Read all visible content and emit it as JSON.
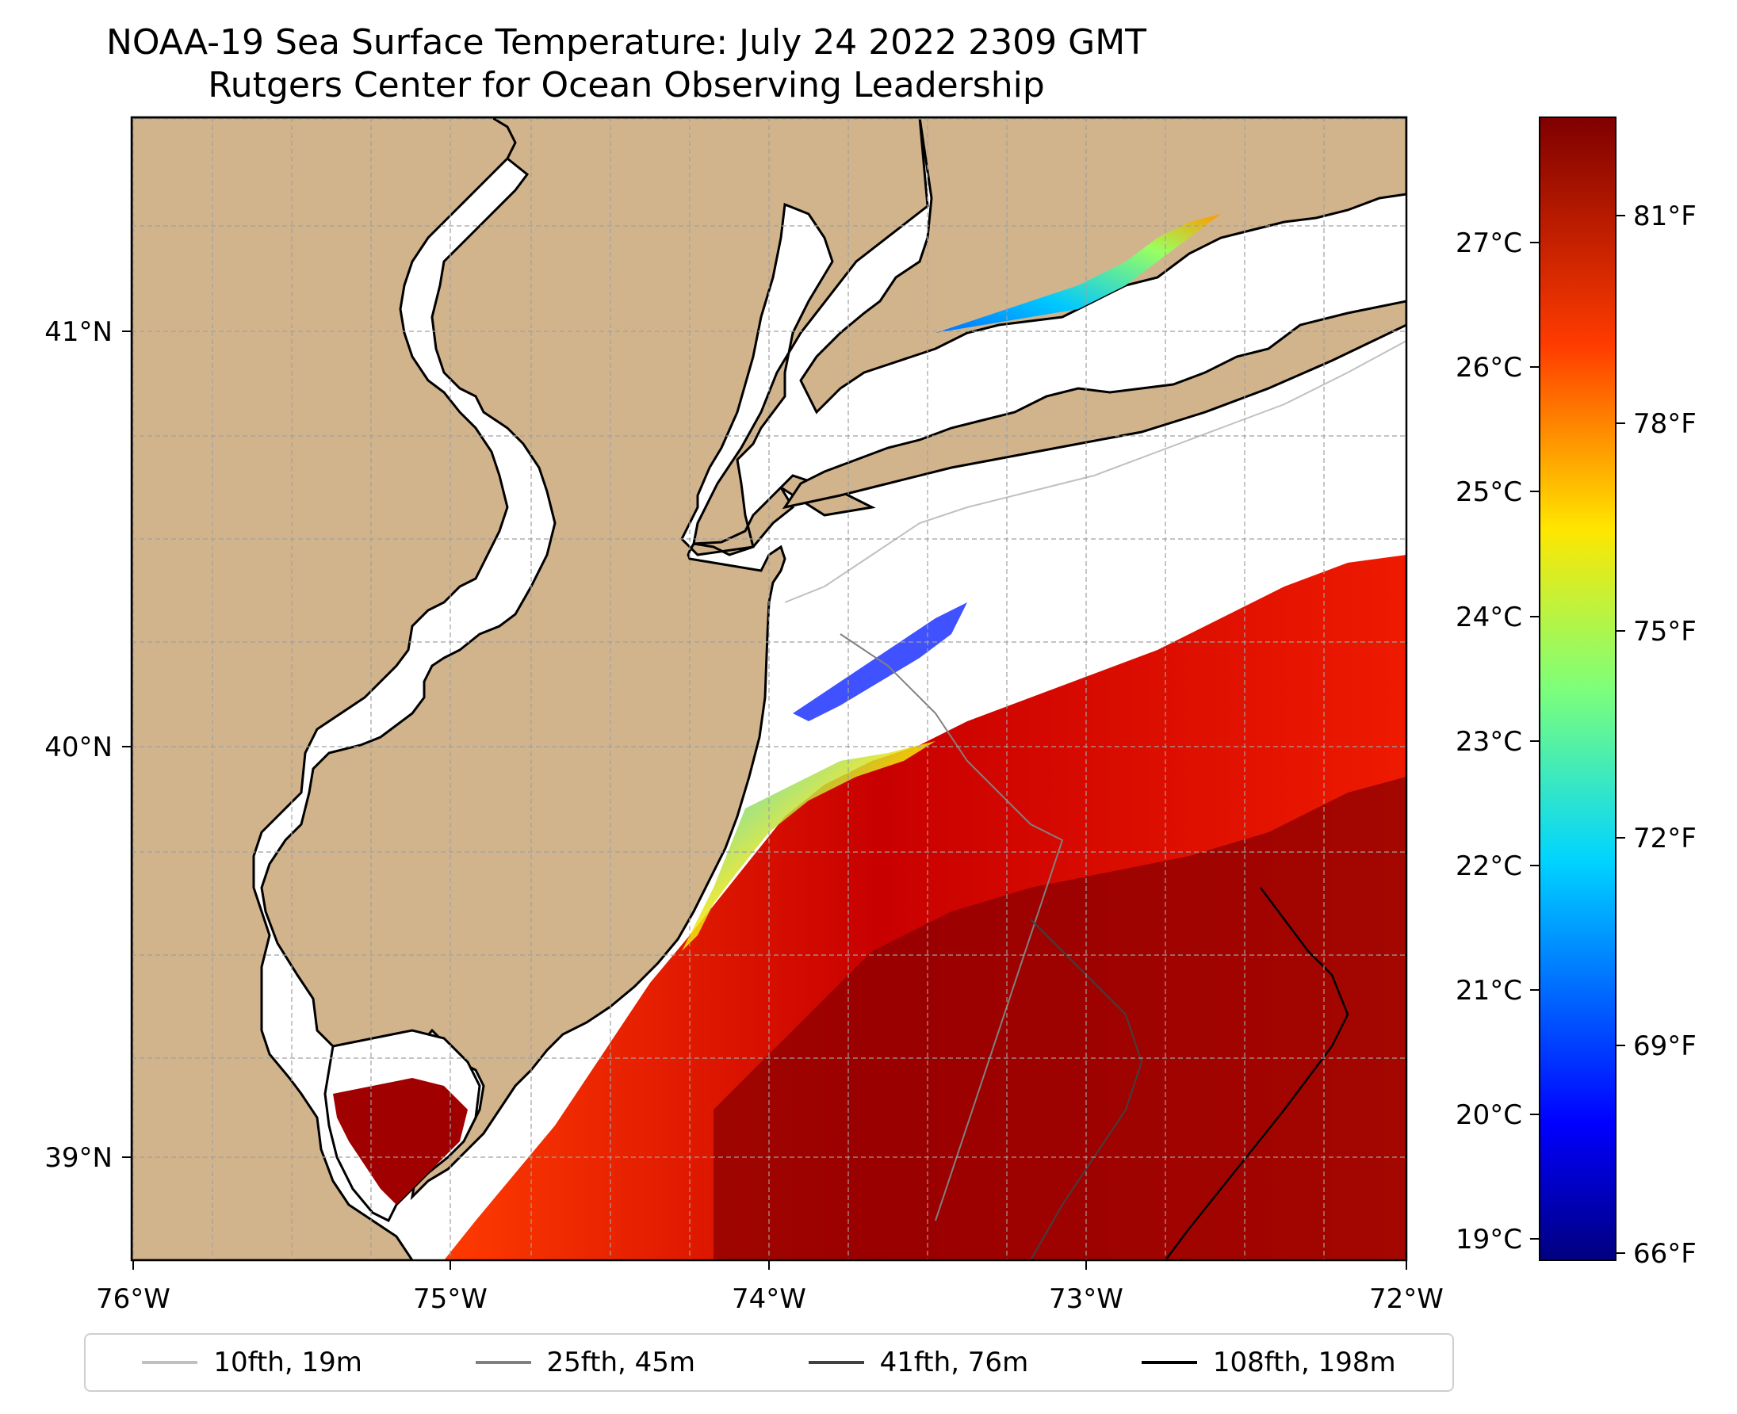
{
  "title": {
    "line1": "NOAA-19 Sea Surface Temperature: July 24 2022 2309 GMT",
    "line2": "Rutgers Center for Ocean Observing Leadership"
  },
  "map": {
    "lat_labels": [
      "41°N",
      "40°N",
      "39°N"
    ],
    "lon_labels": [
      "76°W",
      "75°W",
      "74°W",
      "73°W",
      "72°W"
    ],
    "colors": {
      "land": "#d2b48c",
      "ocean": "#ffffff",
      "grid": "#a0a0a0"
    }
  },
  "colorbar": {
    "celsius_labels": [
      "27°C",
      "26°C",
      "25°C",
      "24°C",
      "23°C",
      "22°C",
      "21°C",
      "20°C",
      "19°C"
    ],
    "fahrenheit_labels": [
      "81°F",
      "78°F",
      "75°F",
      "72°F",
      "69°F",
      "66°F"
    ],
    "range_c": [
      18.9,
      28.2
    ],
    "colormap": "jet"
  },
  "legend": [
    {
      "label": "10fth, 19m",
      "color": "#c0c0c0"
    },
    {
      "label": "25fth, 45m",
      "color": "#808080"
    },
    {
      "label": "41fth, 76m",
      "color": "#404040"
    },
    {
      "label": "108fth, 198m",
      "color": "#000000"
    }
  ]
}
